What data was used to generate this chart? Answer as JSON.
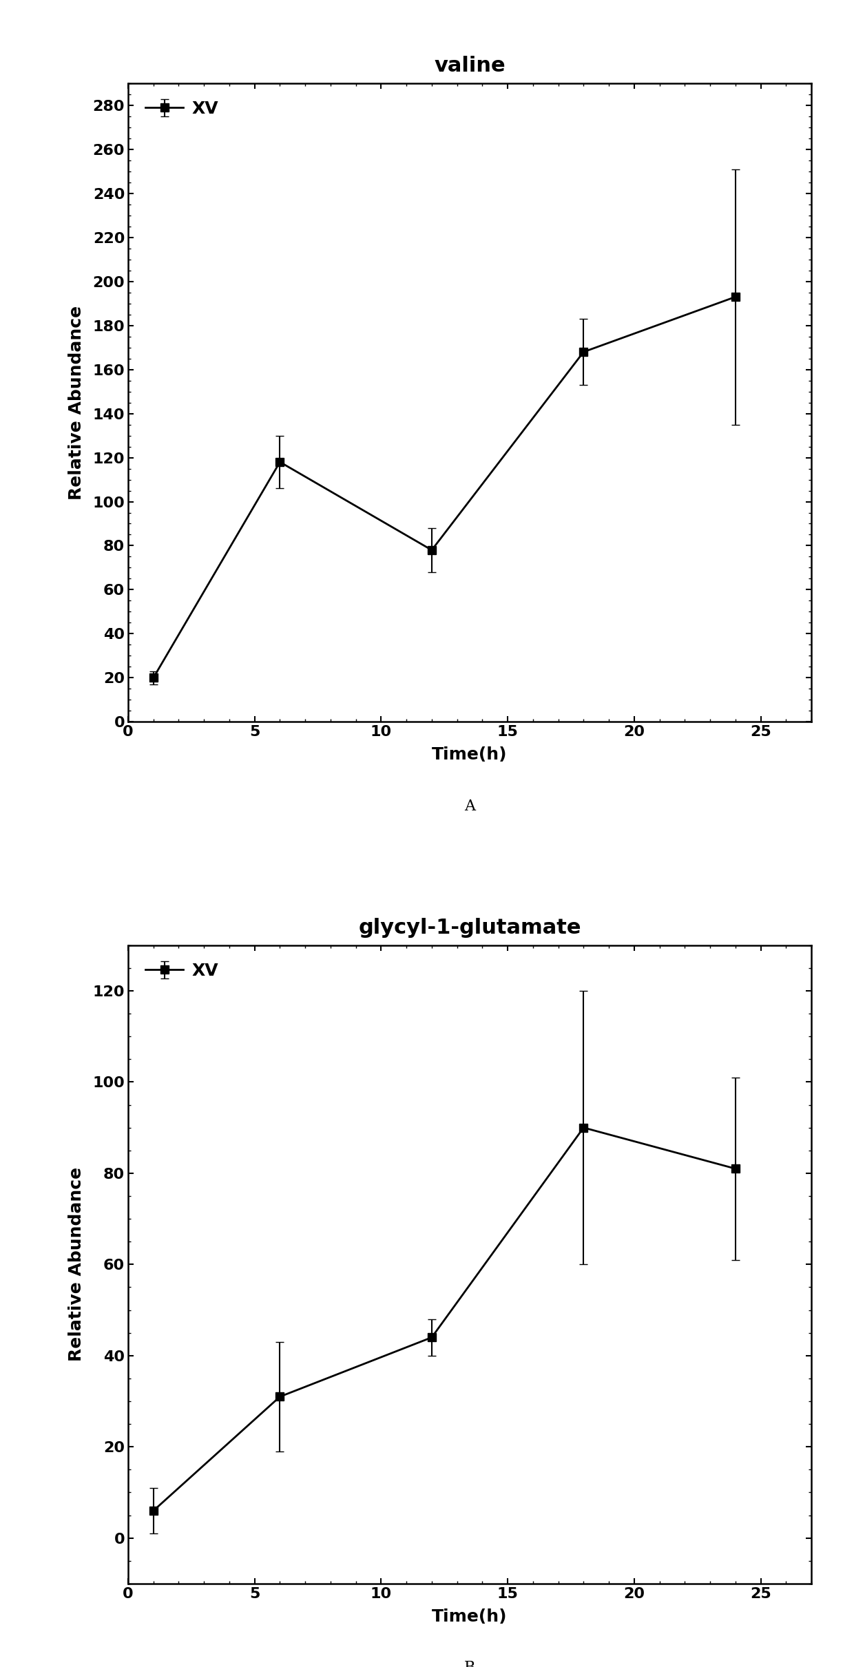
{
  "plot_A": {
    "title": "valine",
    "xlabel": "Time(h)",
    "ylabel": "Relative Abundance",
    "x": [
      1,
      6,
      12,
      18,
      24
    ],
    "y": [
      20,
      118,
      78,
      168,
      193
    ],
    "yerr": [
      3,
      12,
      10,
      15,
      58
    ],
    "xlim": [
      0,
      27
    ],
    "ylim": [
      0,
      290
    ],
    "yticks": [
      0,
      20,
      40,
      60,
      80,
      100,
      120,
      140,
      160,
      180,
      200,
      220,
      240,
      260,
      280
    ],
    "xticks": [
      0,
      5,
      10,
      15,
      20,
      25
    ],
    "legend_label": "XV",
    "panel_label": "A"
  },
  "plot_B": {
    "title": "glycyl-1-glutamate",
    "xlabel": "Time(h)",
    "ylabel": "Relative Abundance",
    "x": [
      1,
      6,
      12,
      18,
      24
    ],
    "y": [
      6,
      31,
      44,
      90,
      81
    ],
    "yerr": [
      5,
      12,
      4,
      30,
      20
    ],
    "xlim": [
      0,
      27
    ],
    "ylim": [
      -10,
      130
    ],
    "yticks": [
      0,
      20,
      40,
      60,
      80,
      100,
      120
    ],
    "xticks": [
      0,
      5,
      10,
      15,
      20,
      25
    ],
    "legend_label": "XV",
    "panel_label": "B"
  },
  "line_color": "#000000",
  "marker": "s",
  "markersize": 9,
  "linewidth": 2.0,
  "capsize": 4,
  "elinewidth": 1.5,
  "title_fontsize": 22,
  "label_fontsize": 18,
  "tick_fontsize": 16,
  "legend_fontsize": 18,
  "panel_label_fontsize": 16,
  "background_color": "#ffffff"
}
